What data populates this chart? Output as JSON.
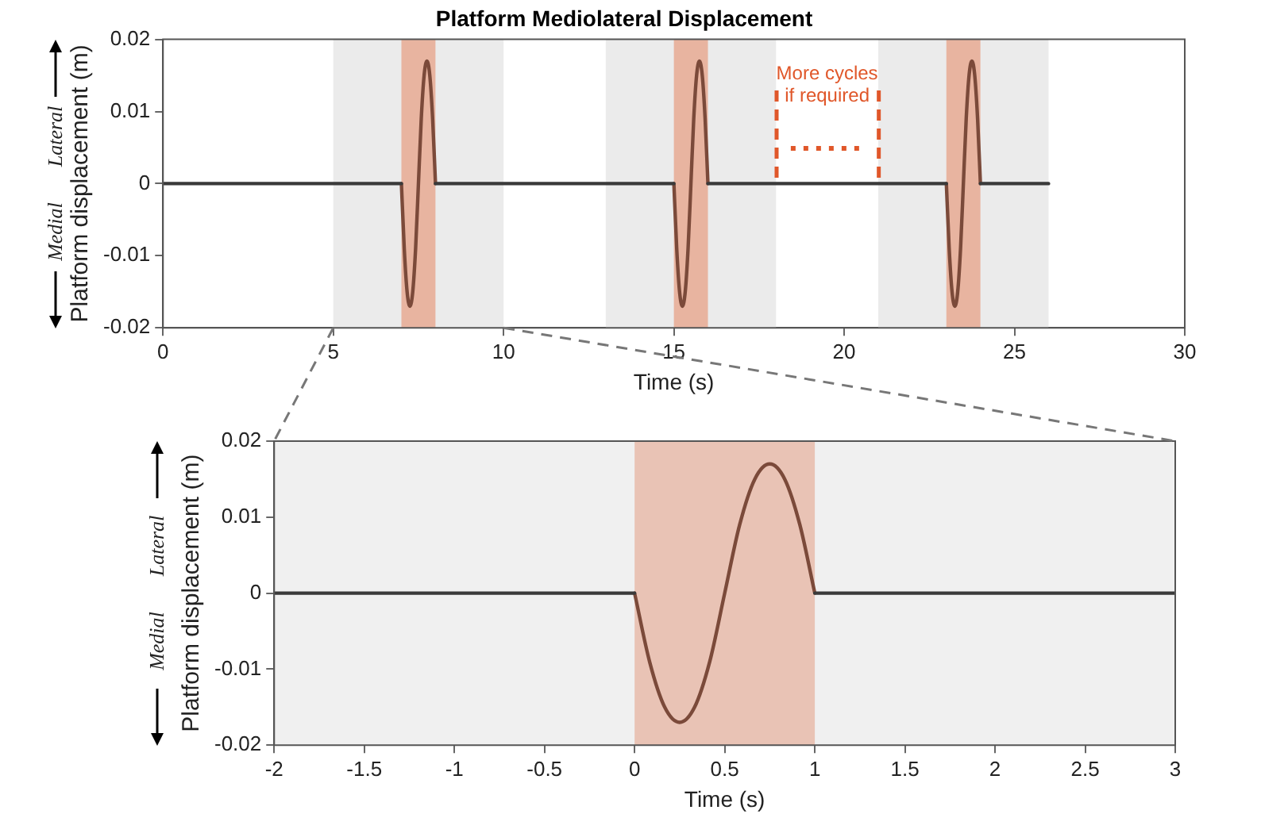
{
  "chart_data": [
    {
      "type": "line",
      "title": "Platform Mediolateral Displacement",
      "xlabel": "Time (s)",
      "ylabel": "Platform displacement (m)",
      "annotations": [
        "Lateral",
        "Medial",
        {
          "text": "More cycles if required",
          "x": 18,
          "y": 0
        }
      ],
      "series": [
        {
          "color": "#3a3a3a",
          "x": [
            0,
            7,
            7.5,
            8,
            15,
            15.5,
            16,
            23,
            23.5,
            24,
            26
          ],
          "values": [
            0,
            0,
            null,
            0,
            0,
            null,
            0,
            0,
            null,
            0,
            0
          ]
        },
        {
          "color": "#7b4a3a",
          "x": [
            7,
            7.083,
            7.167,
            7.25,
            7.333,
            7.417,
            7.5,
            7.583,
            7.667,
            7.75,
            7.833,
            7.917,
            8,
            8.5,
            15,
            15.083,
            15.167,
            15.25,
            15.333,
            15.417,
            15.5,
            15.583,
            15.667,
            15.75,
            15.833,
            15.917,
            16,
            16.5,
            23,
            23.083,
            23.167,
            23.25,
            23.333,
            23.417,
            23.5,
            23.583,
            23.667,
            23.75,
            23.833,
            23.917,
            24
          ],
          "values": [
            0,
            -0.009,
            -0.015,
            -0.017,
            -0.015,
            -0.009,
            0,
            0.009,
            0.015,
            0.017,
            0.015,
            0.009,
            0,
            null,
            0,
            -0.009,
            -0.015,
            -0.017,
            -0.015,
            -0.009,
            0,
            0.009,
            0.015,
            0.017,
            0.015,
            0.009,
            0,
            null,
            0,
            -0.009,
            -0.015,
            -0.017,
            -0.015,
            -0.009,
            0,
            0.009,
            0.015,
            0.017,
            0.015,
            0.009,
            0
          ]
        }
      ],
      "bands": [
        {
          "axis": "x",
          "from": 5,
          "to": 10,
          "color": "#ebebeb"
        },
        {
          "axis": "x",
          "from": 13,
          "to": 18,
          "color": "#ebebeb"
        },
        {
          "axis": "x",
          "from": 21,
          "to": 26,
          "color": "#ebebeb"
        },
        {
          "axis": "x",
          "from": 7,
          "to": 8,
          "color": "#e8b4a0"
        },
        {
          "axis": "x",
          "from": 15,
          "to": 16,
          "color": "#e8b4a0"
        },
        {
          "axis": "x",
          "from": 23,
          "to": 24,
          "color": "#e8b4a0"
        }
      ],
      "xlim": [
        0,
        30
      ],
      "xticks": [
        0,
        5,
        10,
        15,
        20,
        25,
        30
      ],
      "ylim": [
        -0.02,
        0.02
      ],
      "yticks": [
        -0.02,
        -0.01,
        0,
        0.01,
        0.02
      ],
      "grid": false,
      "legend": false,
      "marker": "none",
      "line_style": "solid"
    },
    {
      "type": "line",
      "xlabel": "Time (s)",
      "ylabel": "Platform displacement (m)",
      "annotations": [
        "Lateral",
        "Medial"
      ],
      "series": [
        {
          "color": "#3a3a3a",
          "x": [
            -2,
            0,
            0.5,
            1,
            3
          ],
          "values": [
            0,
            0,
            null,
            0,
            0
          ]
        },
        {
          "color": "#7b4a3a",
          "x": [
            0,
            0.083,
            0.167,
            0.25,
            0.333,
            0.417,
            0.5,
            0.583,
            0.667,
            0.75,
            0.833,
            0.917,
            1
          ],
          "values": [
            0,
            -0.009,
            -0.015,
            -0.017,
            -0.015,
            -0.009,
            0,
            0.009,
            0.015,
            0.017,
            0.015,
            0.009,
            0
          ]
        }
      ],
      "bands": [
        {
          "axis": "x",
          "from": -2,
          "to": 3,
          "color": "#f0f0f0"
        },
        {
          "axis": "x",
          "from": 0,
          "to": 1,
          "color": "#e9c3b5"
        }
      ],
      "xlim": [
        -2,
        3
      ],
      "xticks": [
        -2,
        -1.5,
        -1,
        -0.5,
        0,
        0.5,
        1,
        1.5,
        2,
        2.5,
        3
      ],
      "ylim": [
        -0.02,
        0.02
      ],
      "yticks": [
        -0.02,
        -0.01,
        0,
        0.01,
        0.02
      ],
      "grid": false,
      "legend": false,
      "marker": "none",
      "line_style": "solid"
    }
  ]
}
